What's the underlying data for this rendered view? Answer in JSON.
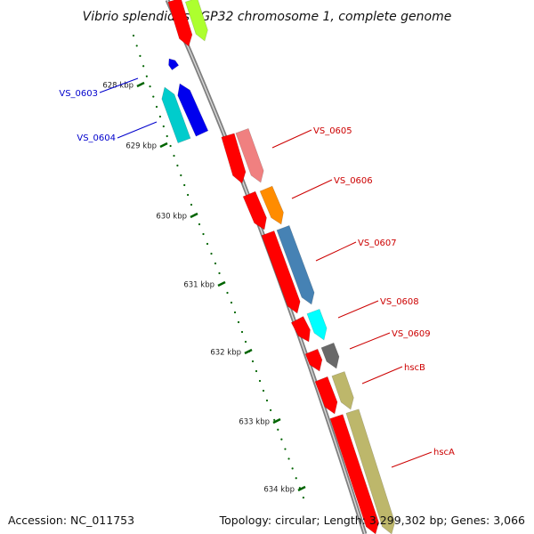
{
  "title": "Vibrio splendidus LGP32 chromosome 1, complete genome",
  "footer": {
    "accession": "Accession: NC_011753",
    "topology": "Topology: circular; Length: 3,299,302 bp; Genes: 3,066"
  },
  "colors": {
    "backbone": "#808080",
    "tick": "#006400",
    "forward_label": "#cc0000",
    "reverse_label": "#0000cc"
  },
  "ticks": [
    {
      "label": "628 kbp"
    },
    {
      "label": "629 kbp"
    },
    {
      "label": "630 kbp"
    },
    {
      "label": "631 kbp"
    },
    {
      "label": "632 kbp"
    },
    {
      "label": "633 kbp"
    },
    {
      "label": "634 kbp"
    }
  ],
  "genes": [
    {
      "label": "VS_0603",
      "strand": "reverse",
      "color": "#0000ee"
    },
    {
      "label": "VS_0604",
      "strand": "reverse",
      "color": "#00cccc"
    },
    {
      "label": "VS_0605",
      "strand": "forward",
      "color": "#f08080"
    },
    {
      "label": "VS_0606",
      "strand": "forward",
      "color": "#ff8c00"
    },
    {
      "label": "VS_0607",
      "strand": "forward",
      "color": "#4682b4"
    },
    {
      "label": "VS_0608",
      "strand": "forward",
      "color": "#00ffff"
    },
    {
      "label": "VS_0609",
      "strand": "forward",
      "color": "#696969"
    },
    {
      "label": "hscB",
      "strand": "forward",
      "color": "#bdb76b"
    },
    {
      "label": "hscA",
      "strand": "forward",
      "color": "#bdb76b"
    }
  ]
}
